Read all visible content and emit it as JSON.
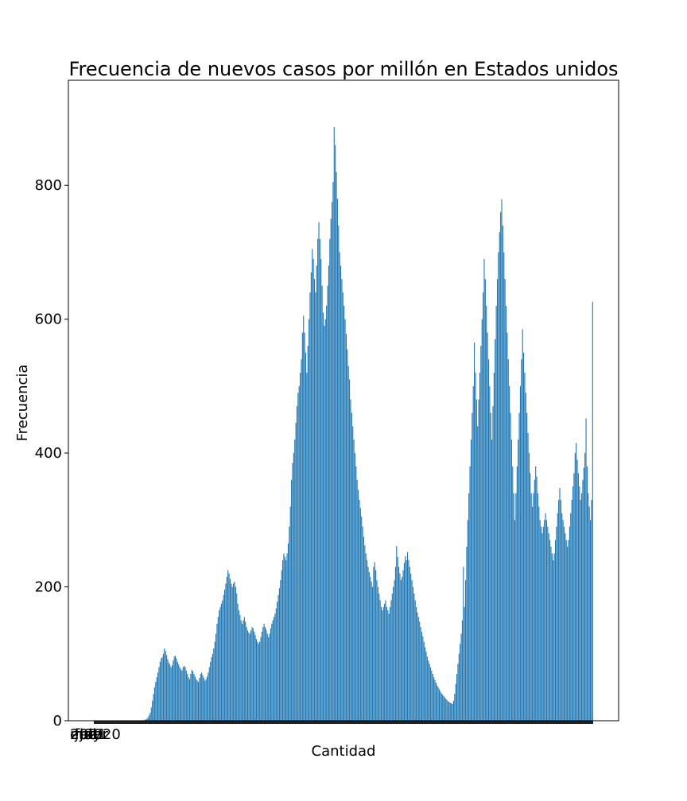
{
  "chart_data": {
    "type": "bar",
    "title": "Frecuencia de nuevos casos por millón en Estados unidos",
    "xlabel": "Cantidad",
    "ylabel": "Frecuencia",
    "ylim": [
      0,
      957
    ],
    "yticks": [
      0,
      200,
      400,
      600,
      800
    ],
    "grid": false,
    "legend": "none",
    "bar_color": "#1f77b4",
    "x_tick_labels_overlapping": [
      "ene",
      "feb",
      "mar",
      "abr",
      "may",
      "jun",
      "jul",
      "2020",
      "2021"
    ],
    "values": [
      0,
      0,
      0,
      0,
      0,
      0,
      0,
      0,
      0,
      0,
      0,
      0,
      0,
      0,
      0,
      0,
      0,
      0,
      0,
      0,
      0,
      0,
      0,
      0,
      0,
      0,
      0,
      0,
      0,
      0,
      0,
      0,
      0,
      0,
      0,
      0,
      0,
      0,
      0,
      0,
      0,
      0,
      0,
      0,
      0,
      1,
      1,
      2,
      3,
      5,
      8,
      12,
      20,
      30,
      40,
      50,
      58,
      65,
      72,
      80,
      88,
      93,
      95,
      100,
      108,
      104,
      98,
      92,
      87,
      84,
      80,
      83,
      90,
      96,
      97,
      93,
      88,
      84,
      80,
      77,
      75,
      80,
      82,
      80,
      75,
      70,
      65,
      62,
      70,
      76,
      74,
      70,
      66,
      62,
      60,
      58,
      64,
      70,
      72,
      68,
      64,
      60,
      62,
      66,
      72,
      80,
      88,
      95,
      100,
      108,
      118,
      130,
      145,
      155,
      165,
      170,
      175,
      180,
      188,
      196,
      205,
      215,
      225,
      220,
      212,
      205,
      200,
      205,
      208,
      200,
      190,
      175,
      165,
      158,
      150,
      145,
      150,
      155,
      148,
      140,
      135,
      132,
      130,
      135,
      140,
      138,
      133,
      128,
      122,
      118,
      115,
      118,
      125,
      133,
      140,
      145,
      140,
      136,
      130,
      125,
      130,
      138,
      145,
      150,
      155,
      160,
      168,
      178,
      188,
      198,
      210,
      225,
      240,
      250,
      245,
      240,
      250,
      265,
      290,
      320,
      360,
      385,
      400,
      420,
      445,
      470,
      490,
      500,
      520,
      540,
      580,
      605,
      580,
      550,
      520,
      560,
      600,
      640,
      670,
      705,
      690,
      660,
      640,
      680,
      720,
      745,
      720,
      690,
      650,
      610,
      590,
      600,
      620,
      650,
      680,
      720,
      750,
      775,
      805,
      887,
      860,
      820,
      780,
      740,
      700,
      680,
      660,
      640,
      620,
      600,
      578,
      555,
      530,
      510,
      480,
      460,
      440,
      420,
      400,
      380,
      360,
      345,
      330,
      318,
      305,
      290,
      275,
      262,
      250,
      240,
      230,
      222,
      215,
      208,
      200,
      230,
      237,
      225,
      210,
      200,
      190,
      180,
      170,
      165,
      170,
      175,
      180,
      170,
      165,
      160,
      170,
      180,
      190,
      200,
      210,
      230,
      261,
      245,
      230,
      220,
      210,
      215,
      225,
      236,
      246,
      240,
      252,
      240,
      230,
      220,
      210,
      200,
      190,
      180,
      170,
      162,
      155,
      148,
      140,
      133,
      126,
      118,
      110,
      103,
      96,
      90,
      85,
      80,
      75,
      70,
      65,
      61,
      57,
      53,
      50,
      47,
      44,
      41,
      39,
      37,
      35,
      33,
      31,
      29,
      28,
      27,
      26,
      25,
      30,
      40,
      55,
      70,
      85,
      100,
      115,
      130,
      150,
      230,
      170,
      210,
      260,
      300,
      340,
      380,
      420,
      460,
      500,
      565,
      520,
      480,
      440,
      480,
      520,
      560,
      600,
      640,
      690,
      660,
      620,
      580,
      540,
      500,
      460,
      420,
      470,
      520,
      570,
      620,
      660,
      700,
      730,
      760,
      779,
      740,
      700,
      660,
      620,
      580,
      540,
      500,
      460,
      420,
      380,
      340,
      300,
      340,
      380,
      420,
      460,
      500,
      540,
      585,
      550,
      520,
      490,
      460,
      430,
      400,
      370,
      340,
      320,
      340,
      360,
      380,
      365,
      340,
      320,
      300,
      290,
      280,
      290,
      300,
      310,
      300,
      290,
      280,
      270,
      260,
      250,
      240,
      250,
      270,
      290,
      310,
      330,
      348,
      330,
      310,
      300,
      290,
      280,
      270,
      260,
      270,
      290,
      310,
      330,
      350,
      370,
      400,
      415,
      390,
      370,
      350,
      330,
      340,
      360,
      378,
      400,
      452,
      380,
      340,
      320,
      300,
      330,
      626
    ]
  }
}
